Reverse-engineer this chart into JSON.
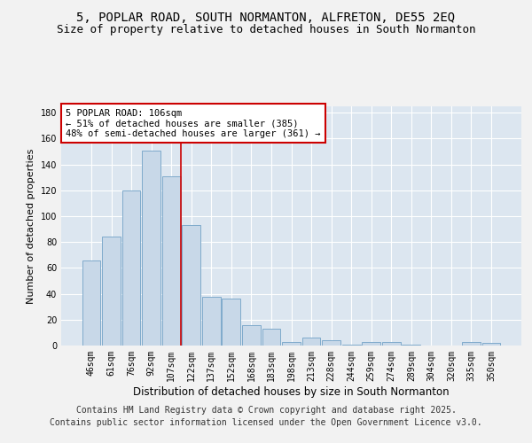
{
  "title_line1": "5, POPLAR ROAD, SOUTH NORMANTON, ALFRETON, DE55 2EQ",
  "title_line2": "Size of property relative to detached houses in South Normanton",
  "xlabel": "Distribution of detached houses by size in South Normanton",
  "ylabel": "Number of detached properties",
  "categories": [
    "46sqm",
    "61sqm",
    "76sqm",
    "92sqm",
    "107sqm",
    "122sqm",
    "137sqm",
    "152sqm",
    "168sqm",
    "183sqm",
    "198sqm",
    "213sqm",
    "228sqm",
    "244sqm",
    "259sqm",
    "274sqm",
    "289sqm",
    "304sqm",
    "320sqm",
    "335sqm",
    "350sqm"
  ],
  "values": [
    66,
    84,
    120,
    151,
    131,
    93,
    38,
    36,
    16,
    13,
    3,
    6,
    4,
    1,
    3,
    3,
    1,
    0,
    0,
    3,
    2
  ],
  "bar_color": "#c8d8e8",
  "bar_edge_color": "#7faacc",
  "highlight_bar_index": 4,
  "highlight_line_color": "#cc0000",
  "annotation_line1": "5 POPLAR ROAD: 106sqm",
  "annotation_line2": "← 51% of detached houses are smaller (385)",
  "annotation_line3": "48% of semi-detached houses are larger (361) →",
  "annotation_box_color": "#ffffff",
  "annotation_box_edge_color": "#cc0000",
  "annotation_fontsize": 7.5,
  "ylim": [
    0,
    185
  ],
  "yticks": [
    0,
    20,
    40,
    60,
    80,
    100,
    120,
    140,
    160,
    180
  ],
  "background_color": "#dce6f0",
  "grid_color": "#ffffff",
  "fig_background": "#f2f2f2",
  "footer_line1": "Contains HM Land Registry data © Crown copyright and database right 2025.",
  "footer_line2": "Contains public sector information licensed under the Open Government Licence v3.0.",
  "footer_fontsize": 7.0,
  "title_fontsize1": 10.0,
  "title_fontsize2": 9.0,
  "xlabel_fontsize": 8.5,
  "ylabel_fontsize": 8.0,
  "tick_fontsize": 7.0
}
